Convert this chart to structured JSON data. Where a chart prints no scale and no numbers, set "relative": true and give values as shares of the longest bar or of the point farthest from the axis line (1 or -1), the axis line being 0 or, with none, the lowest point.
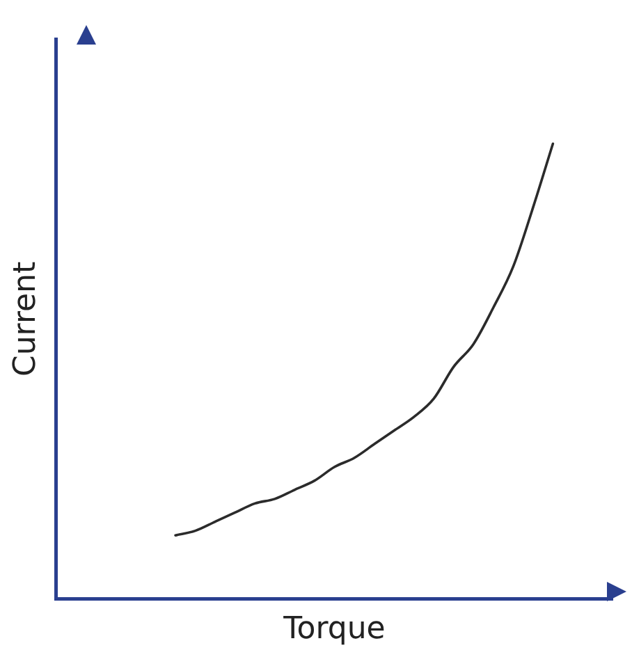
{
  "chart_data": {
    "type": "line",
    "relative": true,
    "xlabel": "Torque",
    "ylabel": "Current",
    "legend": false,
    "grid": false,
    "marker": "none",
    "line_style": "solid",
    "categories": [
      null,
      null,
      null,
      null,
      null,
      null,
      null,
      null,
      null,
      null,
      null,
      null,
      null,
      null,
      null,
      null,
      null,
      null,
      null,
      null,
      null,
      null,
      null,
      null,
      null,
      null,
      null,
      null,
      null
    ],
    "series": [
      {
        "color": "#2b2b2b",
        "values": [
          null,
          null,
          null,
          null,
          null,
          null,
          0.14,
          0.15,
          0.17,
          0.19,
          0.21,
          0.22,
          0.24,
          0.26,
          0.29,
          0.31,
          0.34,
          0.37,
          0.4,
          0.44,
          0.51,
          0.56,
          0.64,
          0.73,
          0.86,
          1,
          null,
          null,
          null
        ]
      }
    ]
  }
}
